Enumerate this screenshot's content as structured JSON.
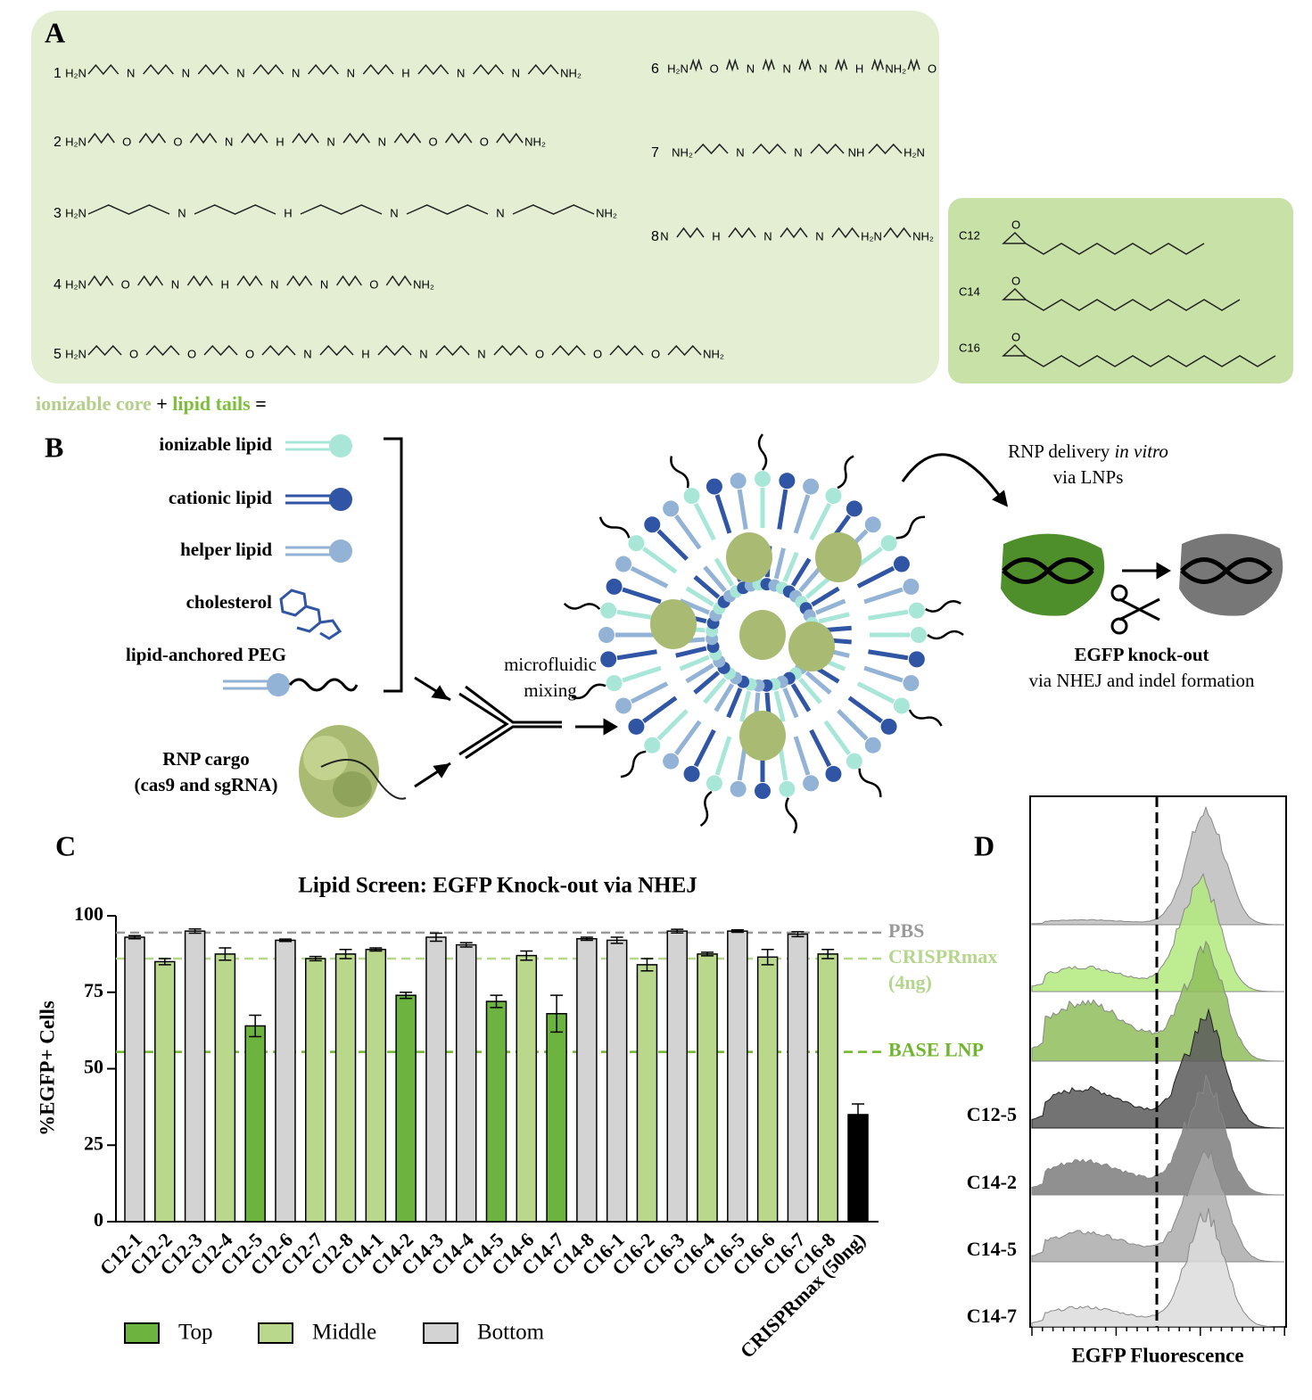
{
  "panel_a": {
    "letter": "A",
    "compounds": [
      {
        "number": "1",
        "atoms": [
          "H₂N",
          "N",
          "N",
          "N",
          "N",
          "N",
          "H",
          "N",
          "N",
          "NH₂"
        ]
      },
      {
        "number": "2",
        "atoms": [
          "H₂N",
          "O",
          "O",
          "N",
          "H",
          "N",
          "N",
          "O",
          "O",
          "NH₂"
        ]
      },
      {
        "number": "3",
        "atoms": [
          "H₂N",
          "N",
          "H",
          "N",
          "N",
          "NH₂"
        ]
      },
      {
        "number": "4",
        "atoms": [
          "H₂N",
          "O",
          "N",
          "H",
          "N",
          "N",
          "O",
          "NH₂"
        ]
      },
      {
        "number": "5",
        "atoms": [
          "H₂N",
          "O",
          "O",
          "O",
          "N",
          "H",
          "N",
          "N",
          "O",
          "O",
          "O",
          "NH₂"
        ]
      },
      {
        "number": "6",
        "atoms": [
          "H₂N",
          "O",
          "N",
          "N",
          "N",
          "H",
          "NH₂",
          "O"
        ]
      },
      {
        "number": "7",
        "atoms": [
          "NH₂",
          "N",
          "N",
          "NH",
          "H₂N"
        ]
      },
      {
        "number": "8",
        "atoms": [
          "N",
          "H",
          "N",
          "N",
          "H₂N",
          "NH₂"
        ]
      }
    ],
    "tails": [
      {
        "label": "C12",
        "oxygen": "O"
      },
      {
        "label": "C14",
        "oxygen": "O"
      },
      {
        "label": "C16",
        "oxygen": "O"
      }
    ],
    "equation": {
      "core": "ionizable core",
      "plus": "+",
      "tails": "lipid tails",
      "equals": "="
    }
  },
  "panel_b": {
    "letter": "B",
    "components": [
      "ionizable lipid",
      "cationic lipid",
      "helper lipid",
      "cholesterol",
      "lipid-anchored PEG"
    ],
    "cargo": [
      "RNP cargo",
      "(cas9 and sgRNA)"
    ],
    "mixing": [
      "microfluidic",
      "mixing"
    ],
    "delivery": {
      "text": "RNP delivery",
      "italic": "in vitro",
      "line2": "via LNPs"
    },
    "outcome": [
      "EGFP knock-out",
      "via NHEJ and indel formation"
    ]
  },
  "chart_data": {
    "type": "bar",
    "letter": "C",
    "title": "Lipid Screen: EGFP Knock-out via NHEJ",
    "y_label": "%EGFP+ Cells",
    "categories": [
      "C12-1",
      "C12-2",
      "C12-3",
      "C12-4",
      "C12-5",
      "C12-6",
      "C12-7",
      "C12-8",
      "C14-1",
      "C14-2",
      "C14-3",
      "C14-4",
      "C14-5",
      "C14-6",
      "C14-7",
      "C14-8",
      "C16-1",
      "C16-2",
      "C16-3",
      "C16-4",
      "C16-5",
      "C16-6",
      "C16-7",
      "C16-8",
      "CRISPRmax (50ng)"
    ],
    "values": [
      93,
      85,
      95,
      87.5,
      64,
      92,
      86,
      87.5,
      89,
      74,
      93,
      90.5,
      72,
      87,
      68,
      92.5,
      92,
      84,
      95,
      87.5,
      95,
      86.5,
      94,
      87.5,
      35
    ],
    "errors": [
      0.5,
      1,
      0.7,
      2,
      3.5,
      0.4,
      0.7,
      1.5,
      0.5,
      1,
      1.3,
      0.7,
      2,
      1.5,
      6,
      0.5,
      1,
      2,
      0.6,
      0.6,
      0.4,
      2.5,
      0.8,
      1.5,
      3.5
    ],
    "bar_group": [
      2,
      1,
      2,
      1,
      0,
      2,
      1,
      1,
      1,
      0,
      2,
      2,
      0,
      1,
      0,
      2,
      2,
      1,
      2,
      1,
      2,
      1,
      2,
      1,
      null
    ],
    "groups": [
      {
        "name": "Top",
        "color": "#6db33f"
      },
      {
        "name": "Middle",
        "color": "#b9d88c"
      },
      {
        "name": "Bottom",
        "color": "#d3d3d3"
      }
    ],
    "default_color": "#000000",
    "ylim": [
      0,
      100
    ],
    "yticks": [
      0,
      25,
      50,
      75,
      100
    ],
    "reference_lines": [
      {
        "label": [
          "PBS"
        ],
        "value": 94.5,
        "color": "#999999"
      },
      {
        "label": [
          "CRISPRmax",
          "(4ng)"
        ],
        "value": 86,
        "color": "#b5d68c"
      },
      {
        "label": [
          "BASE LNP"
        ],
        "value": 55.5,
        "color": "#6fb52d"
      }
    ]
  },
  "panel_d": {
    "letter": "D",
    "x_label": "EGFP Fluorescence",
    "sample_labels": [
      "C12-5",
      "C14-2",
      "C14-5",
      "C14-7"
    ]
  }
}
